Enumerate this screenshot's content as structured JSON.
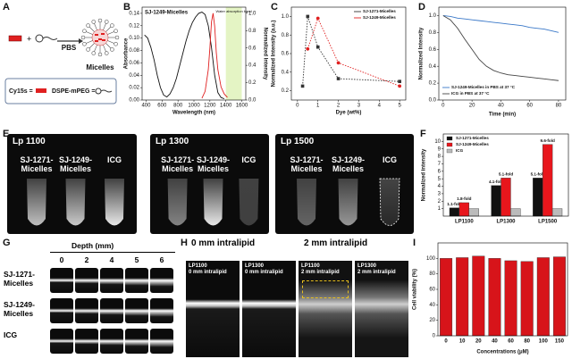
{
  "panel_letters": [
    "A",
    "B",
    "C",
    "D",
    "E",
    "F",
    "G",
    "H",
    "I"
  ],
  "panel_a": {
    "solvent": "PBS",
    "product": "Micelles",
    "legend": [
      "Cy15s =",
      "DSPE-mPEG ="
    ]
  },
  "chart_data": [
    {
      "type": "line",
      "title": "SJ-1249-Micelles",
      "xlabel": "Wavelength (nm)",
      "ylabel": "Absorbance",
      "y2label": "Normalized Intensity",
      "xlim": [
        350,
        1650
      ],
      "xticks": [
        400,
        600,
        800,
        1000,
        1200,
        1400,
        1600
      ],
      "ylim": [
        0,
        0.15
      ],
      "yticks": [
        {
          "value": 0,
          "label": "0.00"
        },
        {
          "value": 0.02,
          "label": "0.02"
        },
        {
          "value": 0.04,
          "label": "0.04"
        },
        {
          "value": 0.06,
          "label": "0.06"
        },
        {
          "value": 0.08,
          "label": "0.08"
        },
        {
          "value": 0.1,
          "label": "0.10"
        },
        {
          "value": 0.12,
          "label": "0.12"
        },
        {
          "value": 0.14,
          "label": "0.14"
        }
      ],
      "y2lim": [
        0,
        1.07
      ],
      "y2ticks": [
        {
          "value": 0,
          "label": "0.0"
        },
        0.2,
        0.4,
        0.6,
        0.8,
        {
          "value": 1,
          "label": "1.0"
        }
      ],
      "shade": {
        "from": 1400,
        "to": 1600,
        "label": "Water absorption band",
        "color": "#e4f4c4"
      },
      "series": [
        {
          "color": "#111111",
          "x": [
            380,
            420,
            460,
            500,
            540,
            580,
            620,
            660,
            700,
            740,
            780,
            820,
            860,
            900,
            940,
            980,
            1020,
            1060,
            1100,
            1140,
            1180,
            1220,
            1260,
            1300,
            1340,
            1380
          ],
          "values": [
            0.105,
            0.1,
            0.085,
            0.065,
            0.04,
            0.02,
            0.008,
            0.005,
            0.01,
            0.02,
            0.035,
            0.055,
            0.075,
            0.095,
            0.112,
            0.125,
            0.134,
            0.14,
            0.142,
            0.138,
            0.12,
            0.085,
            0.04,
            0.012,
            0.004,
            0.002
          ]
        },
        {
          "color": "#e02020",
          "axis": "y2",
          "x": [
            1100,
            1140,
            1180,
            1200,
            1220,
            1240,
            1260,
            1280,
            1300,
            1340,
            1380,
            1420
          ],
          "values": [
            0.02,
            0.1,
            0.35,
            0.6,
            0.9,
            1.0,
            0.85,
            0.55,
            0.35,
            0.15,
            0.07,
            0.03
          ]
        }
      ]
    },
    {
      "type": "line",
      "xlabel": "Dye (wt%)",
      "ylabel": "Normalized Intensity (a.u.)",
      "legend": "upper right",
      "xlim": [
        -0.3,
        5.3
      ],
      "xticks": [
        0,
        1,
        2,
        3,
        4,
        5
      ],
      "ylim": [
        0.1,
        1.1
      ],
      "yticks": [
        0.2,
        0.4,
        0.6,
        0.8,
        {
          "value": 1,
          "label": "1.0"
        }
      ],
      "series": [
        {
          "name": "SJ-1271-Micelles",
          "color": "#333333",
          "marker": "square",
          "dash": true,
          "x": [
            0.25,
            0.5,
            1,
            2,
            5
          ],
          "values": [
            0.25,
            1.0,
            0.67,
            0.33,
            0.3
          ]
        },
        {
          "name": "SJ-1249-Micelles",
          "color": "#e02020",
          "marker": "circle",
          "dash": true,
          "x": [
            0.5,
            1,
            2,
            5
          ],
          "values": [
            0.65,
            0.98,
            0.5,
            0.25
          ]
        }
      ]
    },
    {
      "type": "line",
      "xlabel": "Time (min)",
      "ylabel": "Normalized Intensity",
      "legend": "lower left",
      "xlim": [
        -3,
        85
      ],
      "xticks": [
        0,
        20,
        40,
        60,
        80
      ],
      "ylim": [
        0,
        1.1
      ],
      "yticks": [
        {
          "value": 0,
          "label": "0.0"
        },
        0.2,
        0.4,
        0.6,
        0.8,
        {
          "value": 1,
          "label": "1.0"
        }
      ],
      "x": [
        0,
        5,
        10,
        15,
        20,
        25,
        30,
        35,
        40,
        45,
        50,
        55,
        60,
        65,
        70,
        75,
        80
      ],
      "series": [
        {
          "name": "SJ-1249-Micelles in PBS at 37 °C",
          "color": "#3a78c8",
          "values": [
            1.0,
            0.99,
            0.97,
            0.96,
            0.95,
            0.94,
            0.93,
            0.92,
            0.91,
            0.9,
            0.89,
            0.88,
            0.86,
            0.85,
            0.84,
            0.82,
            0.8
          ]
        },
        {
          "name": "ICG in PBS at 37 °C",
          "color": "#444444",
          "values": [
            1.0,
            0.95,
            0.85,
            0.72,
            0.6,
            0.48,
            0.4,
            0.35,
            0.32,
            0.3,
            0.29,
            0.28,
            0.27,
            0.26,
            0.25,
            0.24,
            0.23
          ]
        }
      ]
    },
    {
      "type": "bar",
      "ylabel": "Normalized intensity",
      "legend": "upper left",
      "categories": [
        "LP1100",
        "LP1300",
        "LP1500"
      ],
      "ylim": [
        0,
        11
      ],
      "yticks": [
        1,
        2,
        3,
        4,
        5,
        6,
        7,
        8,
        9,
        10
      ],
      "series": [
        {
          "name": "SJ-1271-Micelles",
          "color": "#111111",
          "values": [
            1.1,
            4.1,
            5.1
          ],
          "value_labels": [
            "1.1-fold",
            "4.1-fold",
            "5.1-fold"
          ]
        },
        {
          "name": "SJ-1249-Micelles",
          "color": "#e8161c",
          "values": [
            1.8,
            5.1,
            9.6
          ],
          "value_labels": [
            "1.8-fold",
            "5.1-fold",
            "9.6-fold"
          ]
        },
        {
          "name": "ICG",
          "color": "#bbbbbb",
          "values": [
            1,
            1,
            1
          ]
        }
      ]
    },
    {
      "type": "bar",
      "xlabel": "Concentrations (μM)",
      "ylabel": "Cell viability (%)",
      "color": "#d7141a",
      "categories": [
        "0",
        "10",
        "20",
        "40",
        "60",
        "80",
        "100",
        "150"
      ],
      "values": [
        100,
        101,
        103,
        100,
        97,
        96,
        101,
        102
      ],
      "ylim": [
        0,
        120
      ],
      "yticks": [
        0,
        20,
        40,
        60,
        80,
        100
      ]
    }
  ],
  "panel_e": {
    "images": [
      {
        "filter": "Lp 1100",
        "samples": [
          "SJ-1271-Micelles",
          "SJ-1249-Micelles",
          "ICG"
        ]
      },
      {
        "filter": "Lp 1300",
        "samples": [
          "SJ-1271-Micelles",
          "SJ-1249-Micelles",
          "ICG"
        ]
      },
      {
        "filter": "Lp 1500",
        "samples": [
          "SJ-1271-Micelles",
          "SJ-1249-Micelles",
          "ICG"
        ]
      }
    ]
  },
  "panel_g": {
    "axis_label": "Depth (mm)",
    "depths": [
      0,
      2,
      4,
      5,
      6
    ],
    "samples": [
      "SJ-1271-Micelles",
      "SJ-1249-Micelles",
      "ICG"
    ]
  },
  "panel_h": {
    "groups": [
      "0 mm intralipid",
      "2 mm intralipid"
    ],
    "images": [
      {
        "filter": "LP1100",
        "depth": "0 mm intralipid"
      },
      {
        "filter": "LP1300",
        "depth": "0 mm intralipid"
      },
      {
        "filter": "LP1100",
        "depth": "2 mm intralipid"
      },
      {
        "filter": "LP1300",
        "depth": "2 mm intralipid"
      }
    ]
  }
}
